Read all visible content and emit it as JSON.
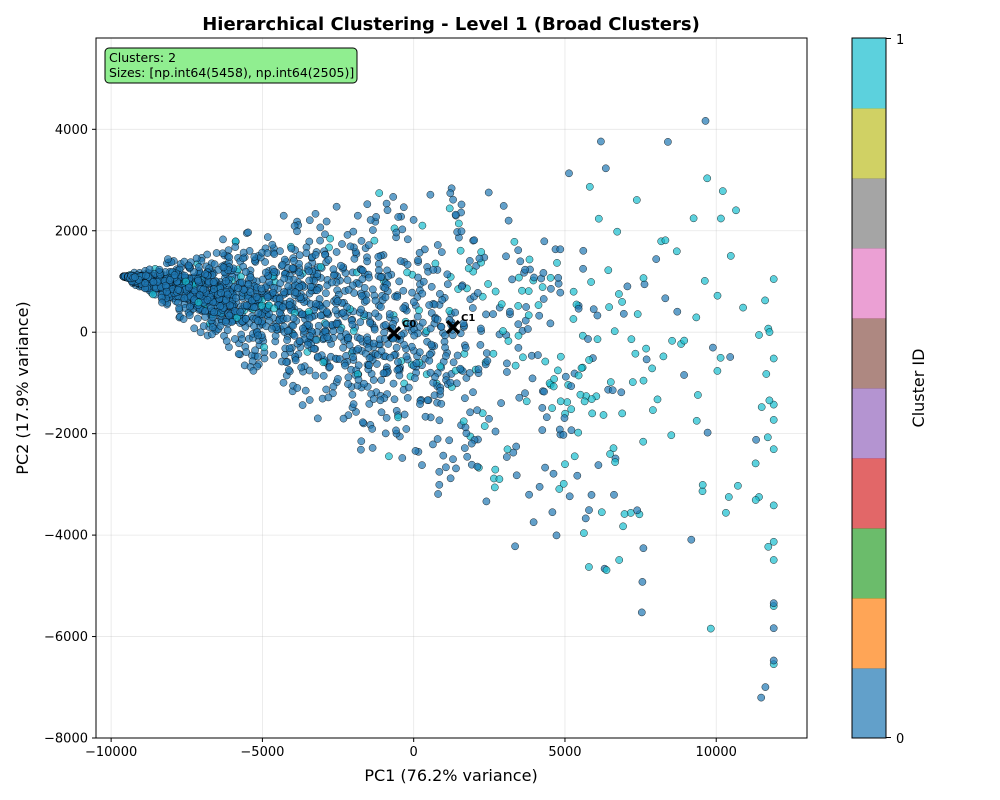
{
  "chart_data": {
    "type": "scatter",
    "title": "Hierarchical Clustering - Level 1 (Broad Clusters)",
    "xlabel": "PC1 (76.2% variance)",
    "ylabel": "PC2 (17.9% variance)",
    "xlim": [
      -10500,
      13000
    ],
    "ylim": [
      -8000,
      5800
    ],
    "xticks": [
      -10000,
      -5000,
      0,
      5000,
      10000
    ],
    "xtick_labels": [
      "−10000",
      "−5000",
      "0",
      "5000",
      "10000"
    ],
    "yticks": [
      -8000,
      -6000,
      -4000,
      -2000,
      0,
      2000,
      4000
    ],
    "ytick_labels": [
      "−8000",
      "−6000",
      "−4000",
      "−2000",
      "0",
      "2000",
      "4000"
    ],
    "grid": true,
    "info_box": {
      "line1": "Clusters: 2",
      "line2": "Sizes: [np.int64(5458), np.int64(2505)]",
      "background": "#90ee90"
    },
    "series": [
      {
        "name": "0",
        "color": "#1f77b4",
        "size": 5458,
        "center": [
          -700,
          0
        ]
      },
      {
        "name": "1",
        "color": "#17becf",
        "size": 2505,
        "center": [
          1300,
          100
        ]
      }
    ],
    "centroids": [
      {
        "label": "C0",
        "x": -650,
        "y": -20
      },
      {
        "label": "C1",
        "x": 1300,
        "y": 100
      }
    ],
    "colorbar": {
      "label": "Cluster ID",
      "tick_labels": [
        "0",
        "1"
      ],
      "colors": [
        "#1f77b4",
        "#ff7f0e",
        "#2ca02c",
        "#d62728",
        "#9467bd",
        "#8c564b",
        "#e377c2",
        "#7f7f7f",
        "#bcbd22",
        "#17becf"
      ]
    }
  }
}
